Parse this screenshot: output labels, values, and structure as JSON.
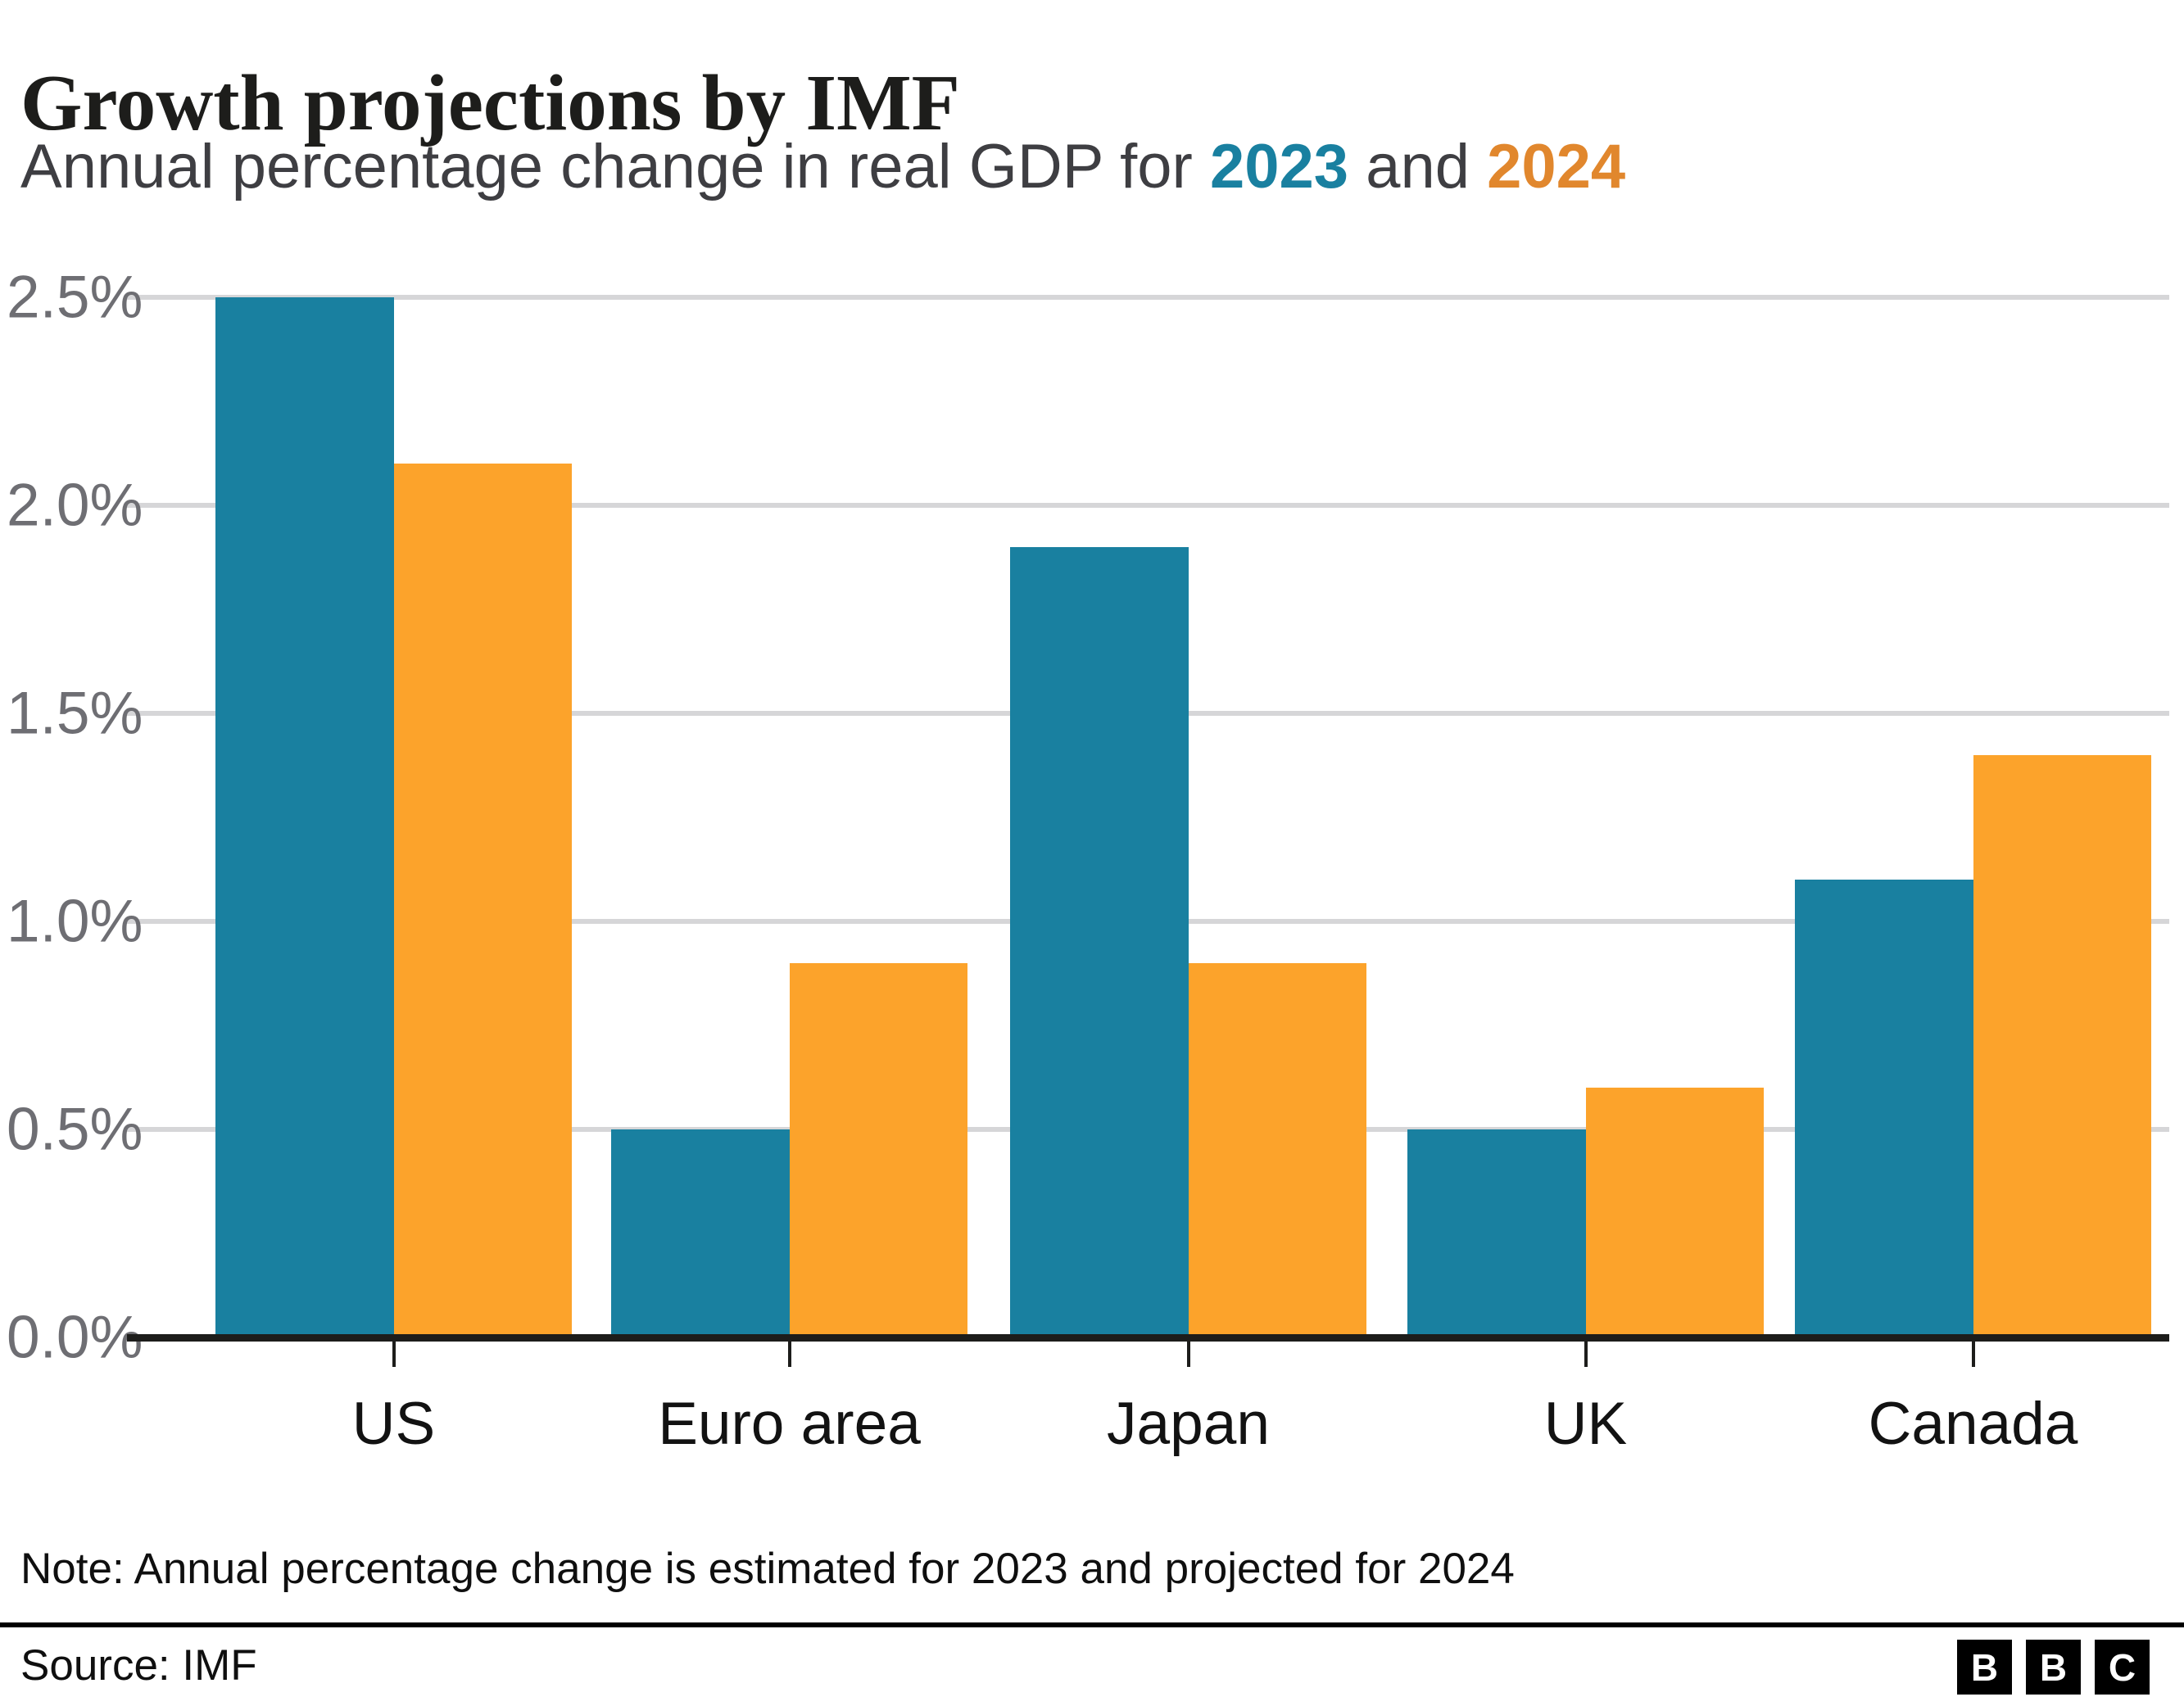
{
  "header": {
    "title": "Growth projections by IMF",
    "subtitle_prefix": "Annual percentage change in real GDP for ",
    "subtitle_year_2023": "2023",
    "subtitle_and": " and ",
    "subtitle_year_2024": "2024"
  },
  "chart_data": {
    "type": "bar",
    "title": "Growth projections by IMF",
    "subtitle": "Annual percentage change in real GDP for 2023 and 2024",
    "categories": [
      "US",
      "Euro area",
      "Japan",
      "UK",
      "Canada"
    ],
    "series": [
      {
        "name": "2023",
        "color": "#1980A0",
        "values": [
          2.5,
          0.5,
          1.9,
          0.5,
          1.1
        ]
      },
      {
        "name": "2024",
        "color": "#FCA32B",
        "values": [
          2.1,
          0.9,
          0.9,
          0.6,
          1.4
        ]
      }
    ],
    "ylim": [
      0,
      2.5
    ],
    "ytick_labels": [
      "2.5%",
      "2.0%",
      "1.5%",
      "1.0%",
      "0.5%",
      "0.0%"
    ],
    "grid": "horizontal",
    "legend": "inline-in-subtitle"
  },
  "footer": {
    "note": "Note: Annual percentage change is estimated for 2023 and projected for 2024",
    "source": "Source: IMF",
    "logo_letters": [
      "B",
      "B",
      "C"
    ]
  },
  "colors": {
    "series_2023": "#1980A0",
    "series_2024": "#FCA32B",
    "subtitle_2023": "#1980A0",
    "subtitle_2024": "#E1872D",
    "axis_labels": "#6E6E73",
    "gridline": "#D6D6D8",
    "baseline": "#1D1D1B"
  }
}
